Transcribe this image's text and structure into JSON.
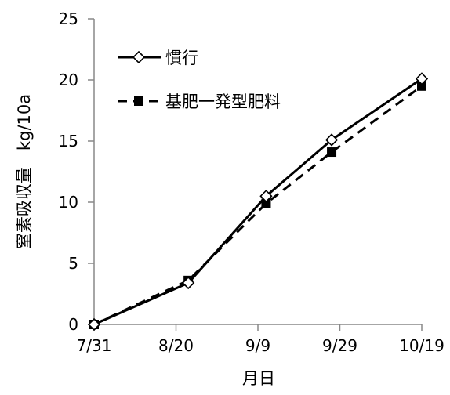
{
  "chart_data": {
    "type": "line",
    "title": "",
    "xlabel": "月日",
    "ylabel": "窒素吸収量　kg/10a",
    "ylim": [
      0,
      25
    ],
    "yticks": [
      0,
      5,
      10,
      15,
      20,
      25
    ],
    "xlim": [
      "2000-07-31",
      "2000-10-19"
    ],
    "xticks": [
      {
        "label": "7/31",
        "date": "2000-07-31"
      },
      {
        "label": "8/20",
        "date": "2000-08-20"
      },
      {
        "label": "9/9",
        "date": "2000-09-09"
      },
      {
        "label": "9/29",
        "date": "2000-09-29"
      },
      {
        "label": "10/19",
        "date": "2000-10-19"
      }
    ],
    "grid": false,
    "legend_position": "top-left",
    "series": [
      {
        "name": "慣行",
        "marker": "open-diamond",
        "line": "solid",
        "color": "#000000",
        "points": [
          {
            "x": "2000-07-31",
            "y": 0.0
          },
          {
            "x": "2000-08-23",
            "y": 3.4
          },
          {
            "x": "2000-09-11",
            "y": 10.5
          },
          {
            "x": "2000-09-27",
            "y": 15.1
          },
          {
            "x": "2000-10-19",
            "y": 20.1
          }
        ]
      },
      {
        "name": "基肥一発型肥料",
        "marker": "filled-square",
        "line": "dashed",
        "color": "#000000",
        "points": [
          {
            "x": "2000-07-31",
            "y": 0.0
          },
          {
            "x": "2000-08-23",
            "y": 3.6
          },
          {
            "x": "2000-09-11",
            "y": 9.9
          },
          {
            "x": "2000-09-27",
            "y": 14.1
          },
          {
            "x": "2000-10-19",
            "y": 19.5
          }
        ]
      }
    ]
  }
}
